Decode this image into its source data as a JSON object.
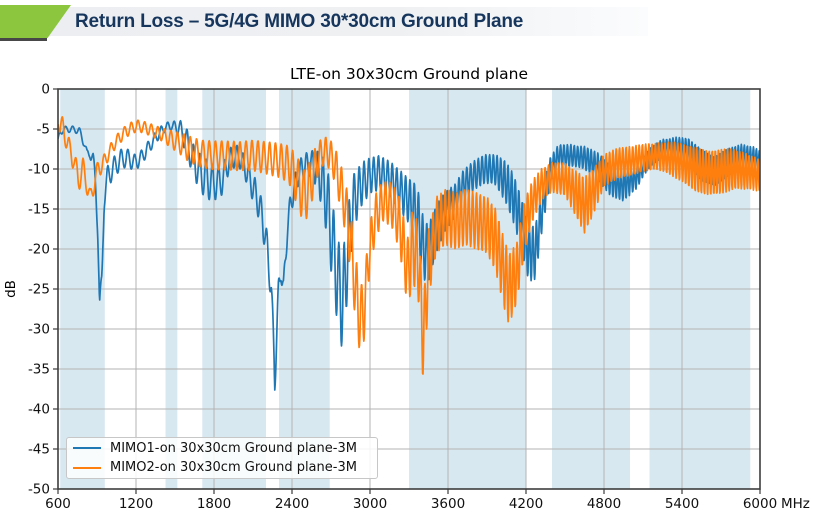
{
  "header": {
    "title": "Return Loss – 5G/4G MIMO 30*30cm Ground Plane",
    "accent_color": "#8CC63F",
    "title_color": "#17365d"
  },
  "chart_data": {
    "type": "line",
    "title": "LTE-on 30x30cm Ground plane",
    "ylabel": "dB",
    "x_unit_label": "MHz",
    "xlim": [
      600,
      6000
    ],
    "ylim": [
      -50,
      0
    ],
    "x_ticks": [
      600,
      1200,
      1800,
      2400,
      3000,
      3600,
      4200,
      4800,
      5400,
      6000
    ],
    "y_ticks": [
      0,
      -5,
      -10,
      -15,
      -20,
      -25,
      -30,
      -35,
      -40,
      -45,
      -50
    ],
    "grid": true,
    "grid_color": "#b3b3b3",
    "band_color": "#d8e8f1",
    "legend_position": "lower-left",
    "shaded_bands_mhz": [
      [
        617,
        960
      ],
      [
        1427,
        1518
      ],
      [
        1710,
        2200
      ],
      [
        2300,
        2690
      ],
      [
        3300,
        4200
      ],
      [
        4400,
        5000
      ],
      [
        5150,
        5925
      ]
    ],
    "series": [
      {
        "name": "MIMO1-on 30x30cm Ground plane-3M",
        "color": "#1f77b4",
        "midline_points": [
          [
            600,
            -6.6
          ],
          [
            615,
            -5.4
          ],
          [
            640,
            -5.1
          ],
          [
            700,
            -5.0
          ],
          [
            760,
            -5.2
          ],
          [
            800,
            -6.5
          ],
          [
            823,
            -8.5
          ],
          [
            845,
            -7.6
          ],
          [
            870,
            -9.0
          ],
          [
            890,
            -12.0
          ],
          [
            905,
            -17.0
          ],
          [
            920,
            -27.5
          ],
          [
            937,
            -24.0
          ],
          [
            955,
            -13.5
          ],
          [
            985,
            -10.8
          ],
          [
            1030,
            -9.8
          ],
          [
            1080,
            -8.8
          ],
          [
            1130,
            -8.6
          ],
          [
            1190,
            -9.2
          ],
          [
            1240,
            -8.6
          ],
          [
            1300,
            -7.2
          ],
          [
            1360,
            -5.9
          ],
          [
            1420,
            -4.8
          ],
          [
            1470,
            -4.6
          ],
          [
            1530,
            -4.8
          ],
          [
            1580,
            -6.2
          ],
          [
            1650,
            -9.3
          ],
          [
            1720,
            -11.0
          ],
          [
            1800,
            -11.8
          ],
          [
            1860,
            -11.5
          ],
          [
            1920,
            -8.8
          ],
          [
            1980,
            -8.3
          ],
          [
            2030,
            -9.5
          ],
          [
            2080,
            -11.5
          ],
          [
            2130,
            -13.5
          ],
          [
            2170,
            -16.0
          ],
          [
            2210,
            -20.0
          ],
          [
            2240,
            -25.0
          ],
          [
            2268,
            -36.0
          ],
          [
            2295,
            -26.0
          ],
          [
            2315,
            -22.0
          ],
          [
            2335,
            -25.5
          ],
          [
            2365,
            -17.0
          ],
          [
            2400,
            -13.5
          ],
          [
            2450,
            -10.5
          ],
          [
            2500,
            -9.5
          ],
          [
            2560,
            -9.3
          ],
          [
            2620,
            -11.0
          ],
          [
            2670,
            -14.0
          ],
          [
            2710,
            -19.0
          ],
          [
            2750,
            -24.0
          ],
          [
            2790,
            -27.0
          ],
          [
            2830,
            -20.0
          ],
          [
            2870,
            -14.5
          ],
          [
            2930,
            -12.0
          ],
          [
            3000,
            -10.8
          ],
          [
            3070,
            -10.5
          ],
          [
            3150,
            -11.2
          ],
          [
            3220,
            -12.5
          ],
          [
            3300,
            -14.0
          ],
          [
            3360,
            -15.5
          ],
          [
            3410,
            -20.0
          ],
          [
            3450,
            -20.5
          ],
          [
            3510,
            -17.5
          ],
          [
            3570,
            -15.5
          ],
          [
            3650,
            -14.0
          ],
          [
            3720,
            -12.0
          ],
          [
            3800,
            -10.8
          ],
          [
            3880,
            -10.0
          ],
          [
            3960,
            -10.0
          ],
          [
            4040,
            -11.5
          ],
          [
            4100,
            -13.5
          ],
          [
            4160,
            -16.5
          ],
          [
            4220,
            -20.5
          ],
          [
            4270,
            -20.5
          ],
          [
            4330,
            -14.5
          ],
          [
            4390,
            -10.0
          ],
          [
            4450,
            -8.4
          ],
          [
            4550,
            -8.3
          ],
          [
            4650,
            -8.6
          ],
          [
            4750,
            -9.6
          ],
          [
            4850,
            -11.5
          ],
          [
            4950,
            -12.0
          ],
          [
            5050,
            -11.0
          ],
          [
            5150,
            -8.6
          ],
          [
            5250,
            -7.4
          ],
          [
            5350,
            -7.3
          ],
          [
            5450,
            -7.8
          ],
          [
            5550,
            -9.5
          ],
          [
            5650,
            -10.3
          ],
          [
            5750,
            -9.2
          ],
          [
            5850,
            -8.4
          ],
          [
            5950,
            -8.6
          ],
          [
            6000,
            -9.0
          ]
        ],
        "ripple_amplitude_points": [
          [
            600,
            0.4
          ],
          [
            750,
            0.4
          ],
          [
            850,
            1.0
          ],
          [
            950,
            1.5
          ],
          [
            1100,
            1.2
          ],
          [
            1300,
            0.8
          ],
          [
            1480,
            0.5
          ],
          [
            1600,
            1.8
          ],
          [
            1750,
            2.5
          ],
          [
            1900,
            1.5
          ],
          [
            2000,
            1.2
          ],
          [
            2150,
            2.0
          ],
          [
            2270,
            2.0
          ],
          [
            2400,
            1.5
          ],
          [
            2550,
            1.5
          ],
          [
            2700,
            5.0
          ],
          [
            2800,
            6.0
          ],
          [
            2900,
            3.0
          ],
          [
            3000,
            2.2
          ],
          [
            3150,
            2.2
          ],
          [
            3300,
            2.8
          ],
          [
            3400,
            4.0
          ],
          [
            3500,
            3.0
          ],
          [
            3650,
            2.0
          ],
          [
            3800,
            1.8
          ],
          [
            3950,
            1.8
          ],
          [
            4100,
            3.0
          ],
          [
            4250,
            3.5
          ],
          [
            4400,
            1.5
          ],
          [
            4600,
            1.3
          ],
          [
            4800,
            1.8
          ],
          [
            4950,
            2.0
          ],
          [
            5100,
            1.2
          ],
          [
            5300,
            1.1
          ],
          [
            5550,
            2.0
          ],
          [
            5700,
            1.8
          ],
          [
            5850,
            1.5
          ],
          [
            6000,
            1.3
          ]
        ],
        "ripple_period_mhz_points": [
          [
            600,
            55
          ],
          [
            1800,
            48
          ],
          [
            2600,
            42
          ],
          [
            3400,
            32
          ],
          [
            4200,
            27
          ],
          [
            6000,
            23
          ]
        ],
        "ripple_phase": 0.8
      },
      {
        "name": "MIMO2-on 30x30cm Ground plane-3M",
        "color": "#ff7f0e",
        "midline_points": [
          [
            600,
            -3.5
          ],
          [
            615,
            -5.0
          ],
          [
            635,
            -4.6
          ],
          [
            660,
            -6.0
          ],
          [
            690,
            -7.8
          ],
          [
            720,
            -8.5
          ],
          [
            755,
            -11.5
          ],
          [
            790,
            -10.0
          ],
          [
            820,
            -11.5
          ],
          [
            848,
            -14.0
          ],
          [
            880,
            -11.5
          ],
          [
            915,
            -9.8
          ],
          [
            950,
            -9.3
          ],
          [
            990,
            -8.0
          ],
          [
            1040,
            -6.7
          ],
          [
            1100,
            -5.6
          ],
          [
            1160,
            -4.9
          ],
          [
            1215,
            -4.6
          ],
          [
            1280,
            -4.9
          ],
          [
            1340,
            -5.3
          ],
          [
            1400,
            -5.7
          ],
          [
            1460,
            -6.2
          ],
          [
            1540,
            -6.8
          ],
          [
            1620,
            -7.6
          ],
          [
            1700,
            -8.1
          ],
          [
            1800,
            -8.3
          ],
          [
            1900,
            -8.3
          ],
          [
            2000,
            -8.4
          ],
          [
            2100,
            -8.3
          ],
          [
            2200,
            -8.6
          ],
          [
            2300,
            -8.9
          ],
          [
            2380,
            -9.5
          ],
          [
            2440,
            -11.5
          ],
          [
            2490,
            -13.5
          ],
          [
            2540,
            -12.0
          ],
          [
            2600,
            -8.6
          ],
          [
            2660,
            -7.6
          ],
          [
            2720,
            -9.0
          ],
          [
            2780,
            -12.5
          ],
          [
            2830,
            -16.5
          ],
          [
            2870,
            -22.0
          ],
          [
            2910,
            -28.0
          ],
          [
            2950,
            -28.5
          ],
          [
            2990,
            -21.0
          ],
          [
            3040,
            -16.0
          ],
          [
            3100,
            -14.0
          ],
          [
            3170,
            -14.5
          ],
          [
            3230,
            -17.0
          ],
          [
            3290,
            -23.0
          ],
          [
            3330,
            -19.5
          ],
          [
            3375,
            -22.0
          ],
          [
            3410,
            -32.0
          ],
          [
            3450,
            -22.0
          ],
          [
            3510,
            -17.0
          ],
          [
            3580,
            -16.0
          ],
          [
            3660,
            -16.5
          ],
          [
            3740,
            -16.0
          ],
          [
            3820,
            -16.5
          ],
          [
            3900,
            -17.0
          ],
          [
            3970,
            -19.0
          ],
          [
            4030,
            -23.0
          ],
          [
            4070,
            -25.0
          ],
          [
            4130,
            -23.0
          ],
          [
            4190,
            -17.0
          ],
          [
            4250,
            -14.0
          ],
          [
            4320,
            -12.0
          ],
          [
            4400,
            -11.0
          ],
          [
            4500,
            -11.3
          ],
          [
            4580,
            -13.0
          ],
          [
            4650,
            -14.5
          ],
          [
            4720,
            -12.8
          ],
          [
            4800,
            -10.2
          ],
          [
            4900,
            -9.3
          ],
          [
            5000,
            -9.0
          ],
          [
            5100,
            -8.6
          ],
          [
            5200,
            -8.4
          ],
          [
            5300,
            -8.6
          ],
          [
            5400,
            -9.2
          ],
          [
            5500,
            -10.0
          ],
          [
            5600,
            -10.5
          ],
          [
            5700,
            -10.3
          ],
          [
            5800,
            -10.0
          ],
          [
            5900,
            -10.3
          ],
          [
            6000,
            -10.8
          ]
        ],
        "ripple_amplitude_points": [
          [
            600,
            1.0
          ],
          [
            700,
            1.5
          ],
          [
            800,
            1.5
          ],
          [
            900,
            1.2
          ],
          [
            1000,
            0.8
          ],
          [
            1200,
            0.7
          ],
          [
            1400,
            0.8
          ],
          [
            1600,
            1.6
          ],
          [
            1800,
            1.8
          ],
          [
            2000,
            1.8
          ],
          [
            2200,
            2.0
          ],
          [
            2350,
            2.2
          ],
          [
            2500,
            3.5
          ],
          [
            2650,
            1.5
          ],
          [
            2800,
            3.0
          ],
          [
            2900,
            4.5
          ],
          [
            3000,
            3.0
          ],
          [
            3100,
            2.5
          ],
          [
            3200,
            3.0
          ],
          [
            3300,
            4.5
          ],
          [
            3410,
            5.0
          ],
          [
            3500,
            3.5
          ],
          [
            3700,
            3.5
          ],
          [
            3900,
            3.5
          ],
          [
            4060,
            4.5
          ],
          [
            4200,
            3.0
          ],
          [
            4350,
            1.8
          ],
          [
            4500,
            2.0
          ],
          [
            4650,
            3.5
          ],
          [
            4800,
            2.0
          ],
          [
            5000,
            1.8
          ],
          [
            5200,
            1.6
          ],
          [
            5500,
            2.8
          ],
          [
            5700,
            2.8
          ],
          [
            5900,
            2.2
          ],
          [
            6000,
            2.0
          ]
        ],
        "ripple_period_mhz_points": [
          [
            600,
            55
          ],
          [
            1800,
            48
          ],
          [
            2600,
            42
          ],
          [
            3400,
            32
          ],
          [
            4200,
            27
          ],
          [
            6000,
            23
          ]
        ],
        "ripple_phase": 3.9
      }
    ]
  }
}
